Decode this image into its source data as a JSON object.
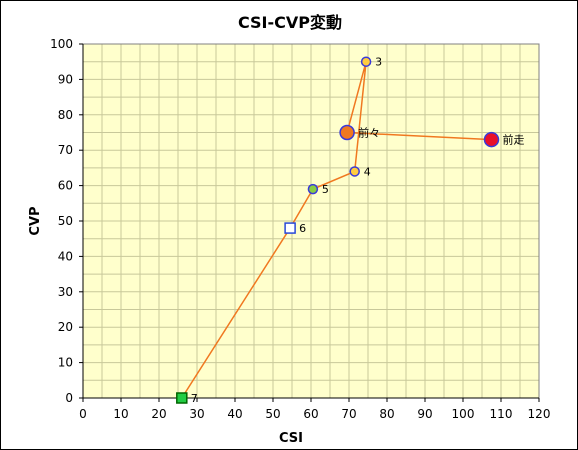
{
  "chart_data": {
    "type": "scatter",
    "title": "CSI-CVP変動",
    "xlabel": "CSI",
    "ylabel": "CVP",
    "xlim": [
      0,
      120
    ],
    "ylim": [
      0,
      100
    ],
    "xticks": [
      0,
      10,
      20,
      30,
      40,
      50,
      60,
      70,
      80,
      90,
      100,
      110,
      120
    ],
    "yticks": [
      0,
      10,
      20,
      30,
      40,
      50,
      60,
      70,
      80,
      90,
      100
    ],
    "grid": true,
    "legend": "none",
    "line_color": "#f07820",
    "plot_background": "#ffffcc",
    "grid_color": "#c8c89a",
    "points": [
      {
        "label": "前走",
        "x": 107.5,
        "y": 73,
        "marker": "circle-large",
        "fill": "#e8102a",
        "stroke": "#3a3ad8"
      },
      {
        "label": "前々",
        "x": 69.5,
        "y": 75,
        "marker": "circle-large",
        "fill": "#f07820",
        "stroke": "#3a3ad8"
      },
      {
        "label": "3",
        "x": 74.5,
        "y": 95,
        "marker": "circle",
        "fill": "#ffcc40",
        "stroke": "#3a3ad8"
      },
      {
        "label": "4",
        "x": 71.5,
        "y": 64,
        "marker": "circle",
        "fill": "#ffcc40",
        "stroke": "#3a3ad8"
      },
      {
        "label": "5",
        "x": 60.5,
        "y": 59,
        "marker": "circle",
        "fill": "#88cc44",
        "stroke": "#3a3ad8"
      },
      {
        "label": "6",
        "x": 54.5,
        "y": 48,
        "marker": "square",
        "fill": "#ffffff",
        "stroke": "#2848d8"
      },
      {
        "label": "7",
        "x": 26,
        "y": 0,
        "marker": "square",
        "fill": "#22cc44",
        "stroke": "#006600"
      }
    ]
  }
}
